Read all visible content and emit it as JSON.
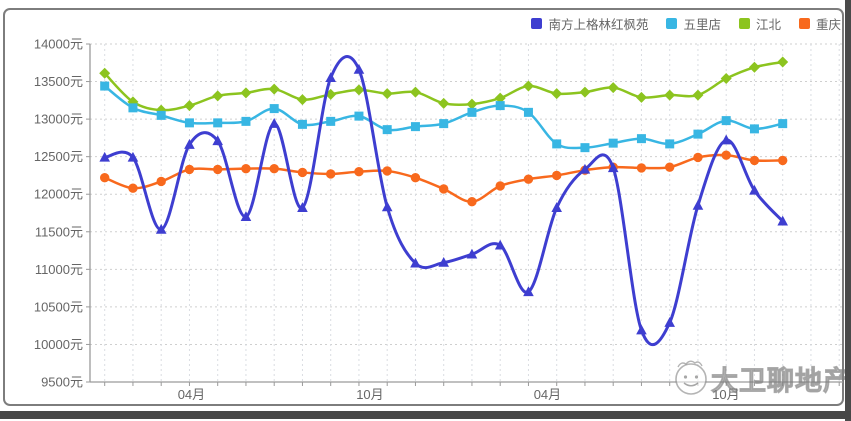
{
  "legend": {
    "items": [
      {
        "label": "南方上格林红枫苑",
        "color": "#3e3ed0",
        "marker": "triangle"
      },
      {
        "label": "五里店",
        "color": "#38b6e3",
        "marker": "square"
      },
      {
        "label": "江北",
        "color": "#8cc41f",
        "marker": "diamond"
      },
      {
        "label": "重庆",
        "color": "#f8691d",
        "marker": "circle"
      }
    ]
  },
  "chart_data": {
    "type": "line",
    "unit": "元",
    "grid": true,
    "legend_position": "top-right",
    "y_axis": {
      "min": 9500,
      "max": 14000,
      "step": 500,
      "tick_labels": [
        "14000元",
        "13500元",
        "13000元",
        "12500元",
        "12000元",
        "11500元",
        "11000元",
        "10500元",
        "10000元",
        "9500元"
      ]
    },
    "x_axis": {
      "total_points": 25,
      "gridline_count": 27,
      "interval": "monthly",
      "tick_labels": [
        {
          "label": "04月",
          "point_index": 3
        },
        {
          "label": "10月",
          "point_index": 9
        },
        {
          "label": "04月",
          "point_index": 15
        },
        {
          "label": "10月",
          "point_index": 21
        }
      ]
    },
    "series": [
      {
        "name": "南方上格林红枫苑",
        "color": "#3e3ed0",
        "marker": "triangle",
        "values": [
          12490,
          12490,
          11530,
          12660,
          12710,
          11700,
          12940,
          11820,
          13550,
          13660,
          11830,
          11080,
          11090,
          11200,
          11320,
          10700,
          11820,
          12330,
          12350,
          10190,
          10290,
          11850,
          12720,
          12050,
          11640
        ]
      },
      {
        "name": "五里店",
        "color": "#38b6e3",
        "marker": "square",
        "values": [
          13440,
          13150,
          13050,
          12950,
          12950,
          12970,
          13140,
          12930,
          12970,
          13040,
          12860,
          12900,
          12940,
          13090,
          13180,
          13090,
          12670,
          12620,
          12680,
          12740,
          12670,
          12800,
          12980,
          12870,
          12940
        ]
      },
      {
        "name": "江北",
        "color": "#8cc41f",
        "marker": "diamond",
        "values": [
          13610,
          13230,
          13120,
          13180,
          13310,
          13350,
          13400,
          13260,
          13330,
          13390,
          13340,
          13360,
          13210,
          13200,
          13280,
          13440,
          13340,
          13360,
          13420,
          13290,
          13320,
          13320,
          13540,
          13690,
          13760
        ]
      },
      {
        "name": "重庆",
        "color": "#f8691d",
        "marker": "circle",
        "values": [
          12220,
          12080,
          12170,
          12330,
          12330,
          12340,
          12340,
          12290,
          12270,
          12300,
          12310,
          12220,
          12070,
          11900,
          12110,
          12200,
          12250,
          12320,
          12360,
          12350,
          12360,
          12490,
          12520,
          12450,
          12450
        ]
      }
    ]
  },
  "watermark": {
    "text": "大卫聊地产",
    "icon": "face-logo"
  }
}
